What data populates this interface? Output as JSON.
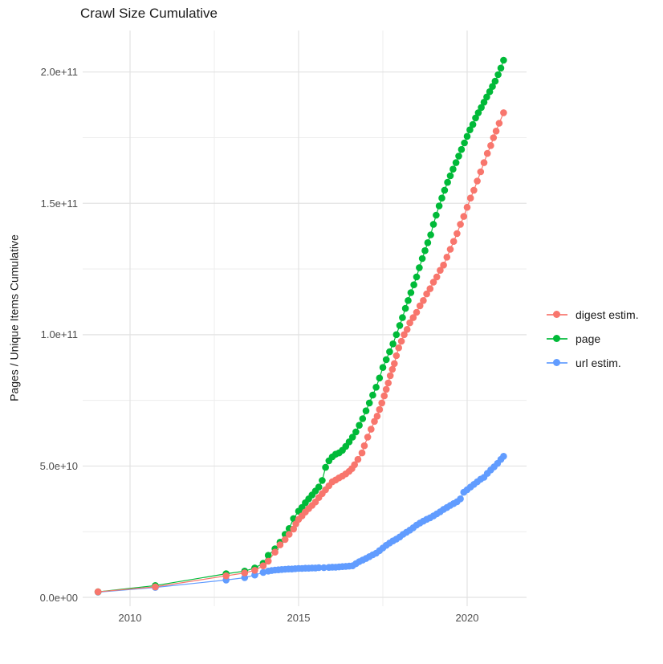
{
  "title": "Crawl Size Cumulative",
  "chart_data": {
    "type": "scatter",
    "title": "Crawl Size Cumulative",
    "xlabel": "",
    "ylabel": "Pages / Unique Items Cumulative",
    "xlim": [
      2008.595,
      2021.762
    ],
    "ylim": [
      -3360000000.0,
      215800000000.0
    ],
    "grid": true,
    "background": "#FFFFFF",
    "grid_major_color": "#E2E2E2",
    "grid_minor_color": "#EDEDED",
    "x_axis": {
      "major_ticks": [
        {
          "label": "2010",
          "value": 2010
        },
        {
          "label": "2015",
          "value": 2015
        },
        {
          "label": "2020",
          "value": 2020
        }
      ],
      "minor_ticks": [
        2012.5,
        2017.5
      ]
    },
    "y_axis": {
      "title": "Pages / Unique Items Cumulative",
      "major_ticks": [
        {
          "label": "0.0e+00",
          "value": 0
        },
        {
          "label": "5.0e+10",
          "value": 50000000000.0
        },
        {
          "label": "1.0e+11",
          "value": 100000000000.0
        },
        {
          "label": "1.5e+11",
          "value": 150000000000.0
        },
        {
          "label": "2.0e+11",
          "value": 200000000000.0
        }
      ],
      "minor_ticks": [
        25000000000.0,
        75000000000.0,
        125000000000.0,
        175000000000.0
      ]
    },
    "legend": {
      "position": "right",
      "entries": [
        {
          "label": "digest estim.",
          "color": "#F8766D"
        },
        {
          "label": "page",
          "color": "#00BA38"
        },
        {
          "label": "url estim.",
          "color": "#619CFF"
        }
      ]
    },
    "marker_radius": 4.3,
    "series": [
      {
        "name": "url estim.",
        "color": "#619CFF",
        "points": [
          [
            2009.05,
            2000000000.0
          ],
          [
            2010.75,
            3800000000.0
          ],
          [
            2012.85,
            6600000000.0
          ],
          [
            2013.4,
            7500000000.0
          ],
          [
            2013.7,
            8500000000.0
          ],
          [
            2013.95,
            9500000000.0
          ],
          [
            2014.1,
            10000000000.0
          ],
          [
            2014.2,
            10200000000.0
          ],
          [
            2014.3,
            10400000000.0
          ],
          [
            2014.4,
            10500000000.0
          ],
          [
            2014.5,
            10600000000.0
          ],
          [
            2014.6,
            10700000000.0
          ],
          [
            2014.7,
            10800000000.0
          ],
          [
            2014.8,
            10800000000.0
          ],
          [
            2014.9,
            10900000000.0
          ],
          [
            2015.0,
            11000000000.0
          ],
          [
            2015.1,
            11000000000.0
          ],
          [
            2015.2,
            11100000000.0
          ],
          [
            2015.3,
            11100000000.0
          ],
          [
            2015.4,
            11200000000.0
          ],
          [
            2015.5,
            11200000000.0
          ],
          [
            2015.6,
            11300000000.0
          ],
          [
            2015.75,
            11300000000.0
          ],
          [
            2015.9,
            11400000000.0
          ],
          [
            2016.0,
            11500000000.0
          ],
          [
            2016.1,
            11500000000.0
          ],
          [
            2016.2,
            11600000000.0
          ],
          [
            2016.3,
            11700000000.0
          ],
          [
            2016.4,
            11800000000.0
          ],
          [
            2016.5,
            11900000000.0
          ],
          [
            2016.6,
            12000000000.0
          ],
          [
            2016.7,
            12800000000.0
          ],
          [
            2016.8,
            13600000000.0
          ],
          [
            2016.9,
            14200000000.0
          ],
          [
            2017.0,
            14800000000.0
          ],
          [
            2017.1,
            15500000000.0
          ],
          [
            2017.2,
            16200000000.0
          ],
          [
            2017.3,
            16800000000.0
          ],
          [
            2017.4,
            17800000000.0
          ],
          [
            2017.5,
            18800000000.0
          ],
          [
            2017.6,
            19800000000.0
          ],
          [
            2017.7,
            20700000000.0
          ],
          [
            2017.8,
            21500000000.0
          ],
          [
            2017.9,
            22200000000.0
          ],
          [
            2018.0,
            23000000000.0
          ],
          [
            2018.1,
            24000000000.0
          ],
          [
            2018.2,
            24800000000.0
          ],
          [
            2018.3,
            25600000000.0
          ],
          [
            2018.4,
            26500000000.0
          ],
          [
            2018.5,
            27500000000.0
          ],
          [
            2018.6,
            28300000000.0
          ],
          [
            2018.7,
            29000000000.0
          ],
          [
            2018.8,
            29700000000.0
          ],
          [
            2018.9,
            30300000000.0
          ],
          [
            2019.0,
            31000000000.0
          ],
          [
            2019.1,
            31800000000.0
          ],
          [
            2019.2,
            32600000000.0
          ],
          [
            2019.3,
            33500000000.0
          ],
          [
            2019.4,
            34200000000.0
          ],
          [
            2019.5,
            35000000000.0
          ],
          [
            2019.6,
            35700000000.0
          ],
          [
            2019.7,
            36400000000.0
          ],
          [
            2019.8,
            37500000000.0
          ],
          [
            2019.9,
            40000000000.0
          ],
          [
            2020.0,
            41000000000.0
          ],
          [
            2020.1,
            42000000000.0
          ],
          [
            2020.2,
            43000000000.0
          ],
          [
            2020.3,
            44000000000.0
          ],
          [
            2020.4,
            45000000000.0
          ],
          [
            2020.5,
            45700000000.0
          ],
          [
            2020.6,
            47200000000.0
          ],
          [
            2020.7,
            48500000000.0
          ],
          [
            2020.8,
            49700000000.0
          ],
          [
            2020.9,
            51000000000.0
          ],
          [
            2021.0,
            52500000000.0
          ],
          [
            2021.08,
            53700000000.0
          ]
        ]
      },
      {
        "name": "page",
        "color": "#00BA38",
        "points": [
          [
            2009.05,
            2100000000.0
          ],
          [
            2010.75,
            4500000000.0
          ],
          [
            2012.85,
            9000000000.0
          ],
          [
            2013.4,
            10000000000.0
          ],
          [
            2013.7,
            11200000000.0
          ],
          [
            2013.95,
            13000000000.0
          ],
          [
            2014.1,
            16000000000.0
          ],
          [
            2014.3,
            18500000000.0
          ],
          [
            2014.45,
            21000000000.0
          ],
          [
            2014.6,
            24000000000.0
          ],
          [
            2014.72,
            26200000000.0
          ],
          [
            2014.85,
            30000000000.0
          ],
          [
            2015.0,
            32800000000.0
          ],
          [
            2015.1,
            34200000000.0
          ],
          [
            2015.2,
            36000000000.0
          ],
          [
            2015.3,
            37500000000.0
          ],
          [
            2015.4,
            39000000000.0
          ],
          [
            2015.5,
            40500000000.0
          ],
          [
            2015.6,
            42000000000.0
          ],
          [
            2015.7,
            44500000000.0
          ],
          [
            2015.8,
            49500000000.0
          ],
          [
            2015.9,
            52000000000.0
          ],
          [
            2016.0,
            53500000000.0
          ],
          [
            2016.1,
            54500000000.0
          ],
          [
            2016.2,
            55000000000.0
          ],
          [
            2016.3,
            56000000000.0
          ],
          [
            2016.4,
            57500000000.0
          ],
          [
            2016.5,
            59200000000.0
          ],
          [
            2016.6,
            61000000000.0
          ],
          [
            2016.7,
            63000000000.0
          ],
          [
            2016.8,
            65500000000.0
          ],
          [
            2016.9,
            68000000000.0
          ],
          [
            2017.0,
            71000000000.0
          ],
          [
            2017.1,
            74000000000.0
          ],
          [
            2017.2,
            77000000000.0
          ],
          [
            2017.3,
            80000000000.0
          ],
          [
            2017.4,
            83500000000.0
          ],
          [
            2017.5,
            87500000000.0
          ],
          [
            2017.6,
            90500000000.0
          ],
          [
            2017.7,
            93500000000.0
          ],
          [
            2017.8,
            96500000000.0
          ],
          [
            2017.9,
            100000000000.0
          ],
          [
            2018.0,
            103500000000.0
          ],
          [
            2018.08,
            106500000000.0
          ],
          [
            2018.17,
            110000000000.0
          ],
          [
            2018.25,
            113000000000.0
          ],
          [
            2018.33,
            116000000000.0
          ],
          [
            2018.42,
            119000000000.0
          ],
          [
            2018.5,
            122000000000.0
          ],
          [
            2018.58,
            125500000000.0
          ],
          [
            2018.67,
            129000000000.0
          ],
          [
            2018.75,
            132000000000.0
          ],
          [
            2018.83,
            135000000000.0
          ],
          [
            2018.92,
            138000000000.0
          ],
          [
            2019.0,
            142000000000.0
          ],
          [
            2019.08,
            145500000000.0
          ],
          [
            2019.17,
            149000000000.0
          ],
          [
            2019.25,
            152000000000.0
          ],
          [
            2019.33,
            155000000000.0
          ],
          [
            2019.42,
            158000000000.0
          ],
          [
            2019.5,
            160500000000.0
          ],
          [
            2019.58,
            163000000000.0
          ],
          [
            2019.67,
            165500000000.0
          ],
          [
            2019.75,
            168000000000.0
          ],
          [
            2019.83,
            170500000000.0
          ],
          [
            2019.92,
            173000000000.0
          ],
          [
            2020.0,
            175500000000.0
          ],
          [
            2020.08,
            178000000000.0
          ],
          [
            2020.17,
            180000000000.0
          ],
          [
            2020.25,
            182500000000.0
          ],
          [
            2020.33,
            184500000000.0
          ],
          [
            2020.42,
            186500000000.0
          ],
          [
            2020.5,
            188500000000.0
          ],
          [
            2020.58,
            190500000000.0
          ],
          [
            2020.67,
            192500000000.0
          ],
          [
            2020.75,
            194500000000.0
          ],
          [
            2020.83,
            196500000000.0
          ],
          [
            2020.92,
            199000000000.0
          ],
          [
            2021.0,
            201500000000.0
          ],
          [
            2021.08,
            204500000000.0
          ]
        ]
      },
      {
        "name": "digest estim.",
        "color": "#F8766D",
        "points": [
          [
            2009.05,
            2100000000.0
          ],
          [
            2010.75,
            4000000000.0
          ],
          [
            2012.85,
            8200000000.0
          ],
          [
            2013.4,
            9300000000.0
          ],
          [
            2013.7,
            10300000000.0
          ],
          [
            2013.95,
            12000000000.0
          ],
          [
            2014.1,
            13800000000.0
          ],
          [
            2014.3,
            17200000000.0
          ],
          [
            2014.45,
            20000000000.0
          ],
          [
            2014.6,
            22000000000.0
          ],
          [
            2014.72,
            24000000000.0
          ],
          [
            2014.85,
            26000000000.0
          ],
          [
            2014.92,
            28000000000.0
          ],
          [
            2015.0,
            29700000000.0
          ],
          [
            2015.1,
            31000000000.0
          ],
          [
            2015.2,
            32500000000.0
          ],
          [
            2015.3,
            33800000000.0
          ],
          [
            2015.4,
            35000000000.0
          ],
          [
            2015.5,
            36300000000.0
          ],
          [
            2015.6,
            38000000000.0
          ],
          [
            2015.7,
            39500000000.0
          ],
          [
            2015.8,
            41000000000.0
          ],
          [
            2015.9,
            42500000000.0
          ],
          [
            2016.0,
            44000000000.0
          ],
          [
            2016.1,
            44700000000.0
          ],
          [
            2016.2,
            45500000000.0
          ],
          [
            2016.3,
            46200000000.0
          ],
          [
            2016.4,
            47000000000.0
          ],
          [
            2016.5,
            48000000000.0
          ],
          [
            2016.58,
            49000000000.0
          ],
          [
            2016.66,
            50500000000.0
          ],
          [
            2016.76,
            52500000000.0
          ],
          [
            2016.88,
            55000000000.0
          ],
          [
            2016.95,
            57700000000.0
          ],
          [
            2017.05,
            61000000000.0
          ],
          [
            2017.15,
            64000000000.0
          ],
          [
            2017.25,
            67000000000.0
          ],
          [
            2017.33,
            69000000000.0
          ],
          [
            2017.4,
            71500000000.0
          ],
          [
            2017.47,
            74000000000.0
          ],
          [
            2017.54,
            76700000000.0
          ],
          [
            2017.6,
            79200000000.0
          ],
          [
            2017.66,
            81600000000.0
          ],
          [
            2017.72,
            84400000000.0
          ],
          [
            2017.78,
            86800000000.0
          ],
          [
            2017.84,
            89000000000.0
          ],
          [
            2017.9,
            92000000000.0
          ],
          [
            2017.97,
            95000000000.0
          ],
          [
            2018.05,
            97500000000.0
          ],
          [
            2018.13,
            100000000000.0
          ],
          [
            2018.22,
            102000000000.0
          ],
          [
            2018.3,
            104500000000.0
          ],
          [
            2018.4,
            106500000000.0
          ],
          [
            2018.5,
            108500000000.0
          ],
          [
            2018.6,
            111000000000.0
          ],
          [
            2018.7,
            113000000000.0
          ],
          [
            2018.8,
            115500000000.0
          ],
          [
            2018.9,
            117500000000.0
          ],
          [
            2019.0,
            120000000000.0
          ],
          [
            2019.1,
            122000000000.0
          ],
          [
            2019.2,
            124500000000.0
          ],
          [
            2019.3,
            126500000000.0
          ],
          [
            2019.4,
            129500000000.0
          ],
          [
            2019.5,
            132500000000.0
          ],
          [
            2019.6,
            135500000000.0
          ],
          [
            2019.7,
            138500000000.0
          ],
          [
            2019.8,
            142000000000.0
          ],
          [
            2019.9,
            145000000000.0
          ],
          [
            2020.0,
            148500000000.0
          ],
          [
            2020.1,
            152000000000.0
          ],
          [
            2020.2,
            155000000000.0
          ],
          [
            2020.3,
            158500000000.0
          ],
          [
            2020.4,
            162000000000.0
          ],
          [
            2020.5,
            165500000000.0
          ],
          [
            2020.6,
            169000000000.0
          ],
          [
            2020.7,
            172000000000.0
          ],
          [
            2020.78,
            175000000000.0
          ],
          [
            2020.86,
            177500000000.0
          ],
          [
            2020.95,
            180500000000.0
          ],
          [
            2021.08,
            184500000000.0
          ]
        ]
      }
    ]
  }
}
